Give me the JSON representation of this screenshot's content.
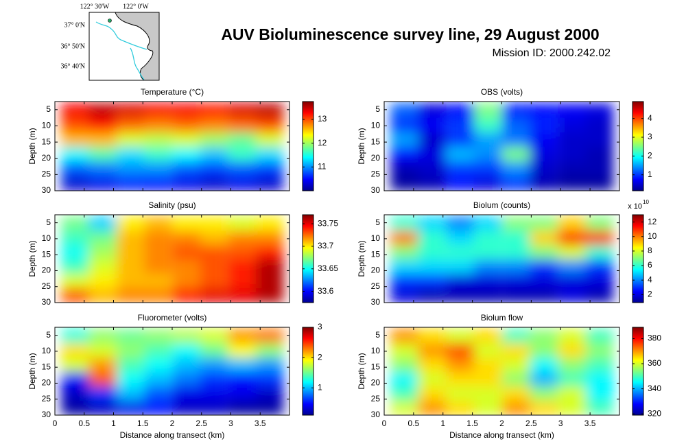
{
  "header": {
    "title": "AUV Bioluminescence survey line, 29 August 2000",
    "subtitle": "Mission ID: 2000.242.02"
  },
  "map": {
    "lon_labels": [
      "122° 30'W",
      "122° 0'W"
    ],
    "lat_labels": [
      "37° 0'N",
      "36° 50'N",
      "36° 40'N"
    ]
  },
  "chart_data": [
    {
      "type": "heatmap",
      "title": "Temperature (°C)",
      "ylabel": "Depth (m)",
      "colormap": "jet",
      "show_xticklabels": false,
      "yreverse": true,
      "x": [
        0.34,
        0.81,
        1.29,
        1.76,
        2.24,
        2.71,
        3.19,
        3.66
      ],
      "y": [
        5.25,
        9.75,
        14.25,
        18.75,
        23.25,
        27.75
      ],
      "values": [
        [
          13.3,
          13.5,
          13.4,
          13.3,
          13.3,
          13.2,
          13.4,
          13.5
        ],
        [
          13.0,
          13.2,
          12.9,
          12.8,
          12.9,
          12.8,
          12.9,
          13.0
        ],
        [
          12.6,
          12.6,
          12.2,
          12.1,
          12.2,
          12.0,
          11.8,
          12.2
        ],
        [
          11.4,
          11.7,
          11.3,
          11.6,
          11.4,
          11.2,
          11.6,
          11.3
        ],
        [
          10.8,
          10.9,
          11.0,
          11.0,
          10.8,
          10.7,
          10.8,
          10.7
        ],
        [
          10.3,
          10.4,
          10.6,
          10.5,
          10.4,
          10.3,
          10.4,
          10.3
        ]
      ],
      "xlim": [
        0,
        4
      ],
      "xticks": [
        0,
        0.5,
        1,
        1.5,
        2,
        2.5,
        3,
        3.5
      ],
      "ylim": [
        2.5,
        30
      ],
      "yticks": [
        5,
        10,
        15,
        20,
        25,
        30
      ],
      "clim": [
        10.0,
        13.75
      ],
      "cticks": [
        11,
        12,
        13
      ]
    },
    {
      "type": "heatmap",
      "title": "OBS (volts)",
      "ylabel": "Depth (m)",
      "colormap": "jet",
      "show_xticklabels": false,
      "yreverse": true,
      "x": [
        0.34,
        0.81,
        1.29,
        1.76,
        2.24,
        2.71,
        3.19,
        3.66
      ],
      "y": [
        5.25,
        9.75,
        14.25,
        18.75,
        23.25,
        27.75
      ],
      "values": [
        [
          1.2,
          0.6,
          0.8,
          2.5,
          0.9,
          0.8,
          0.7,
          0.6
        ],
        [
          1.0,
          0.7,
          1.0,
          2.2,
          1.2,
          0.9,
          0.6,
          0.5
        ],
        [
          1.5,
          0.5,
          1.0,
          1.5,
          1.3,
          0.7,
          0.5,
          0.5
        ],
        [
          0.8,
          0.6,
          1.6,
          1.4,
          2.5,
          0.6,
          0.5,
          0.4
        ],
        [
          0.4,
          0.5,
          1.0,
          1.0,
          1.4,
          0.5,
          0.4,
          0.4
        ],
        [
          0.3,
          0.4,
          0.8,
          0.6,
          1.0,
          0.4,
          0.3,
          0.3
        ]
      ],
      "xlim": [
        0,
        4
      ],
      "xticks": [
        0,
        0.5,
        1,
        1.5,
        2,
        2.5,
        3,
        3.5
      ],
      "ylim": [
        2.5,
        30
      ],
      "yticks": [
        5,
        10,
        15,
        20,
        25,
        30
      ],
      "clim": [
        0.15,
        4.9
      ],
      "cticks": [
        1,
        2,
        3,
        4
      ]
    },
    {
      "type": "heatmap",
      "title": "Salinity (psu)",
      "ylabel": "Depth (m)",
      "colormap": "jet",
      "show_xticklabels": false,
      "yreverse": true,
      "x": [
        0.34,
        0.81,
        1.29,
        1.76,
        2.24,
        2.71,
        3.19,
        3.66
      ],
      "y": [
        5.25,
        9.75,
        14.25,
        18.75,
        23.25,
        27.75
      ],
      "values": [
        [
          33.67,
          33.64,
          33.7,
          33.71,
          33.7,
          33.7,
          33.69,
          33.7
        ],
        [
          33.66,
          33.67,
          33.71,
          33.72,
          33.72,
          33.71,
          33.72,
          33.72
        ],
        [
          33.65,
          33.68,
          33.71,
          33.72,
          33.73,
          33.73,
          33.73,
          33.74
        ],
        [
          33.66,
          33.69,
          33.71,
          33.72,
          33.72,
          33.73,
          33.74,
          33.76
        ],
        [
          33.69,
          33.7,
          33.71,
          33.71,
          33.72,
          33.73,
          33.74,
          33.76
        ],
        [
          33.73,
          33.71,
          33.72,
          33.72,
          33.74,
          33.75,
          33.75,
          33.76
        ]
      ],
      "xlim": [
        0,
        4
      ],
      "xticks": [
        0,
        0.5,
        1,
        1.5,
        2,
        2.5,
        3,
        3.5
      ],
      "ylim": [
        2.5,
        30
      ],
      "yticks": [
        5,
        10,
        15,
        20,
        25,
        30
      ],
      "clim": [
        33.575,
        33.77
      ],
      "cticks": [
        33.6,
        33.65,
        33.7,
        33.75
      ]
    },
    {
      "type": "heatmap",
      "title": "Biolum (counts)",
      "ylabel": "Depth (m)",
      "colormap": "jet",
      "show_xticklabels": false,
      "yreverse": true,
      "x": [
        0.34,
        0.81,
        1.29,
        1.76,
        2.24,
        2.71,
        3.19,
        3.66
      ],
      "y": [
        5.25,
        9.75,
        14.25,
        18.75,
        23.25,
        27.75
      ],
      "values": [
        [
          6,
          5,
          4,
          5,
          7,
          7,
          9,
          7
        ],
        [
          10,
          6,
          5,
          6,
          6,
          9,
          11,
          11
        ],
        [
          7,
          6,
          6,
          6,
          6,
          7,
          8,
          6
        ],
        [
          5,
          5,
          5,
          4,
          4,
          3,
          4,
          3
        ],
        [
          3,
          3,
          2,
          2,
          2,
          2,
          2,
          2
        ],
        [
          2,
          1.5,
          1.5,
          1.5,
          1.5,
          1.5,
          2,
          1.5
        ]
      ],
      "xlim": [
        0,
        4
      ],
      "xticks": [
        0,
        0.5,
        1,
        1.5,
        2,
        2.5,
        3,
        3.5
      ],
      "ylim": [
        2.5,
        30
      ],
      "yticks": [
        5,
        10,
        15,
        20,
        25,
        30
      ],
      "clim": [
        0.9,
        13
      ],
      "cticks": [
        2,
        4,
        6,
        8,
        10,
        12
      ],
      "cbar_multiplier": "x 10",
      "cbar_exponent": "10"
    },
    {
      "type": "heatmap",
      "title": "Fluorometer (volts)",
      "ylabel": "Depth (m)",
      "xlabel": "Distance along transect (km)",
      "colormap": "jet",
      "show_xticklabels": true,
      "yreverse": true,
      "x": [
        0.34,
        0.81,
        1.29,
        1.76,
        2.24,
        2.71,
        3.19,
        3.66
      ],
      "y": [
        5.25,
        9.75,
        14.25,
        18.75,
        23.25,
        27.75
      ],
      "values": [
        [
          1.3,
          1.6,
          1.5,
          1.6,
          1.7,
          1.8,
          2.2,
          2.3
        ],
        [
          2.0,
          1.8,
          1.6,
          1.4,
          1.2,
          1.5,
          1.9,
          1.6
        ],
        [
          1.8,
          2.2,
          1.4,
          1.2,
          1.0,
          0.9,
          1.0,
          0.9
        ],
        [
          0.5,
          2.4,
          1.2,
          1.0,
          0.8,
          0.6,
          0.5,
          0.6
        ],
        [
          0.3,
          0.6,
          1.0,
          0.7,
          0.4,
          0.4,
          0.4,
          0.3
        ],
        [
          0.2,
          0.3,
          0.4,
          0.5,
          0.3,
          0.3,
          0.2,
          0.2
        ]
      ],
      "xlim": [
        0,
        4
      ],
      "xticks": [
        0,
        0.5,
        1,
        1.5,
        2,
        2.5,
        3,
        3.5
      ],
      "ylim": [
        2.5,
        30
      ],
      "yticks": [
        5,
        10,
        15,
        20,
        25,
        30
      ],
      "clim": [
        0.1,
        3
      ],
      "cticks": [
        1,
        2,
        3
      ]
    },
    {
      "type": "heatmap",
      "title": "Biolum flow",
      "ylabel": "Depth (m)",
      "xlabel": "Distance along transect (km)",
      "colormap": "jet",
      "show_xticklabels": true,
      "yreverse": true,
      "x": [
        0.34,
        0.81,
        1.29,
        1.76,
        2.24,
        2.71,
        3.19,
        3.66
      ],
      "y": [
        5.25,
        9.75,
        14.25,
        18.75,
        23.25,
        27.75
      ],
      "values": [
        [
          370,
          365,
          360,
          365,
          350,
          355,
          360,
          350
        ],
        [
          360,
          370,
          375,
          360,
          365,
          355,
          365,
          355
        ],
        [
          355,
          365,
          370,
          365,
          360,
          345,
          355,
          350
        ],
        [
          345,
          360,
          365,
          365,
          355,
          340,
          350,
          345
        ],
        [
          350,
          365,
          360,
          360,
          365,
          355,
          360,
          345
        ],
        [
          360,
          370,
          365,
          360,
          370,
          365,
          360,
          350
        ]
      ],
      "xlim": [
        0,
        4
      ],
      "xticks": [
        0,
        0.5,
        1,
        1.5,
        2,
        2.5,
        3,
        3.5
      ],
      "ylim": [
        2.5,
        30
      ],
      "yticks": [
        5,
        10,
        15,
        20,
        25,
        30
      ],
      "clim": [
        319,
        389
      ],
      "cticks": [
        320,
        340,
        360,
        380
      ]
    }
  ]
}
